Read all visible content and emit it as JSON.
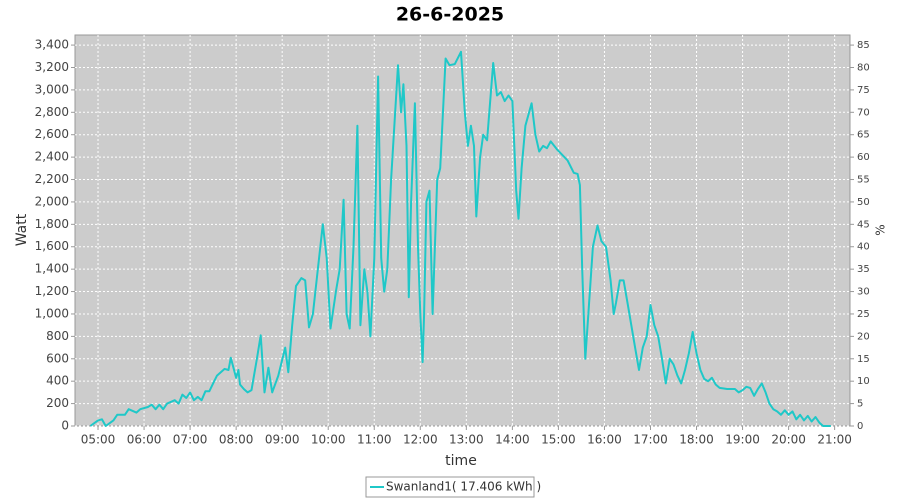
{
  "chart_data": {
    "type": "line",
    "title": "26-6-2025",
    "xlabel": "time",
    "ylabel": "Watt",
    "y2label": "%",
    "x": [
      "04:50",
      "05:00",
      "05:05",
      "05:10",
      "05:20",
      "05:25",
      "05:35",
      "05:40",
      "05:50",
      "05:55",
      "06:05",
      "06:10",
      "06:15",
      "06:20",
      "06:25",
      "06:30",
      "06:40",
      "06:45",
      "06:50",
      "06:55",
      "07:00",
      "07:05",
      "07:10",
      "07:15",
      "07:20",
      "07:25",
      "07:30",
      "07:35",
      "07:45",
      "07:50",
      "07:53",
      "08:00",
      "08:03",
      "08:05",
      "08:10",
      "08:15",
      "08:20",
      "08:27",
      "08:32",
      "08:37",
      "08:42",
      "08:47",
      "08:55",
      "09:04",
      "09:08",
      "09:13",
      "09:18",
      "09:25",
      "09:30",
      "09:35",
      "09:40",
      "09:53",
      "09:58",
      "10:03",
      "10:10",
      "10:15",
      "10:20",
      "10:24",
      "10:28",
      "10:33",
      "10:38",
      "10:42",
      "10:47",
      "10:51",
      "10:55",
      "11:00",
      "11:05",
      "11:09",
      "11:13",
      "11:17",
      "11:22",
      "11:31",
      "11:35",
      "11:38",
      "11:42",
      "11:45",
      "11:48",
      "11:53",
      "11:57",
      "12:00",
      "12:03",
      "12:05",
      "12:08",
      "12:12",
      "12:16",
      "12:22",
      "12:26",
      "12:33",
      "12:38",
      "12:45",
      "12:53",
      "12:58",
      "13:02",
      "13:06",
      "13:10",
      "13:13",
      "13:18",
      "13:22",
      "13:27",
      "13:35",
      "13:40",
      "13:45",
      "13:50",
      "13:55",
      "14:00",
      "14:05",
      "14:08",
      "14:12",
      "14:17",
      "14:25",
      "14:30",
      "14:35",
      "14:40",
      "14:45",
      "14:50",
      "14:58",
      "15:05",
      "15:12",
      "15:20",
      "15:25",
      "15:28",
      "15:31",
      "15:35",
      "15:40",
      "15:45",
      "15:51",
      "15:56",
      "16:02",
      "16:08",
      "16:12",
      "16:15",
      "16:20",
      "16:25",
      "16:30",
      "16:35",
      "16:40",
      "16:45",
      "16:50",
      "16:55",
      "17:00",
      "17:05",
      "17:10",
      "17:15",
      "17:20",
      "17:25",
      "17:30",
      "17:35",
      "17:40",
      "17:45",
      "17:50",
      "17:55",
      "18:00",
      "18:05",
      "18:10",
      "18:15",
      "18:20",
      "18:25",
      "18:30",
      "18:40",
      "18:50",
      "18:55",
      "19:00",
      "19:05",
      "19:10",
      "19:15",
      "19:20",
      "19:25",
      "19:30",
      "19:35",
      "19:40",
      "19:45",
      "19:50",
      "19:55",
      "20:00",
      "20:05",
      "20:10",
      "20:15",
      "20:20",
      "20:25",
      "20:30",
      "20:35",
      "20:40",
      "20:45",
      "20:55"
    ],
    "series": [
      {
        "name": "Swanland1( 17.406 kWh )",
        "color": "#1fc8c8",
        "values": [
          0,
          50,
          60,
          0,
          50,
          100,
          100,
          150,
          120,
          150,
          170,
          190,
          150,
          190,
          150,
          200,
          230,
          200,
          280,
          250,
          300,
          230,
          260,
          230,
          310,
          310,
          380,
          450,
          510,
          500,
          610,
          430,
          500,
          370,
          330,
          300,
          320,
          600,
          810,
          300,
          520,
          300,
          450,
          700,
          480,
          900,
          1250,
          1320,
          1300,
          880,
          1000,
          1800,
          1500,
          870,
          1200,
          1400,
          2020,
          1000,
          870,
          1600,
          2680,
          900,
          1400,
          1200,
          800,
          1500,
          3120,
          1500,
          1200,
          1400,
          2200,
          3220,
          2800,
          3050,
          2500,
          1150,
          2000,
          2880,
          1600,
          1000,
          570,
          1000,
          2000,
          2100,
          1000,
          2200,
          2300,
          3280,
          3220,
          3230,
          3340,
          2800,
          2500,
          2680,
          2500,
          1870,
          2400,
          2600,
          2550,
          3240,
          2950,
          2980,
          2900,
          2950,
          2900,
          2100,
          1850,
          2300,
          2680,
          2880,
          2600,
          2450,
          2500,
          2480,
          2540,
          2470,
          2420,
          2370,
          2260,
          2250,
          2150,
          1400,
          600,
          1100,
          1600,
          1790,
          1650,
          1600,
          1300,
          1000,
          1100,
          1300,
          1300,
          1100,
          900,
          700,
          500,
          700,
          800,
          1080,
          900,
          800,
          600,
          380,
          600,
          550,
          450,
          380,
          500,
          650,
          840,
          650,
          500,
          420,
          400,
          430,
          370,
          340,
          330,
          330,
          300,
          320,
          350,
          340,
          270,
          330,
          380,
          300,
          200,
          150,
          130,
          100,
          140,
          100,
          130,
          60,
          100,
          50,
          90,
          40,
          80,
          30,
          0,
          0
        ]
      }
    ],
    "xlim": [
      "04:30",
      "21:20"
    ],
    "xticks": [
      "05:00",
      "06:00",
      "07:00",
      "08:00",
      "09:00",
      "10:00",
      "11:00",
      "12:00",
      "13:00",
      "14:00",
      "15:00",
      "16:00",
      "17:00",
      "18:00",
      "19:00",
      "20:00",
      "21:00"
    ],
    "ylim": [
      0,
      3490
    ],
    "yticks": [
      0,
      200,
      400,
      600,
      800,
      {
        "value": 1000,
        "label": "1,000"
      },
      {
        "value": 1200,
        "label": "1,200"
      },
      {
        "value": 1400,
        "label": "1,400"
      },
      {
        "value": 1600,
        "label": "1,600"
      },
      {
        "value": 1800,
        "label": "1,800"
      },
      {
        "value": 2000,
        "label": "2,000"
      },
      {
        "value": 2200,
        "label": "2,200"
      },
      {
        "value": 2400,
        "label": "2,400"
      },
      {
        "value": 2600,
        "label": "2,600"
      },
      {
        "value": 2800,
        "label": "2,800"
      },
      {
        "value": 3000,
        "label": "3,000"
      },
      {
        "value": 3200,
        "label": "3,200"
      },
      {
        "value": 3400,
        "label": "3,400"
      }
    ],
    "y2lim": [
      0,
      87.25
    ],
    "y2ticks": [
      0,
      5,
      10,
      15,
      20,
      25,
      30,
      35,
      40,
      45,
      50,
      55,
      60,
      65,
      70,
      75,
      80,
      85
    ],
    "grid": true,
    "legend": "bottom"
  }
}
